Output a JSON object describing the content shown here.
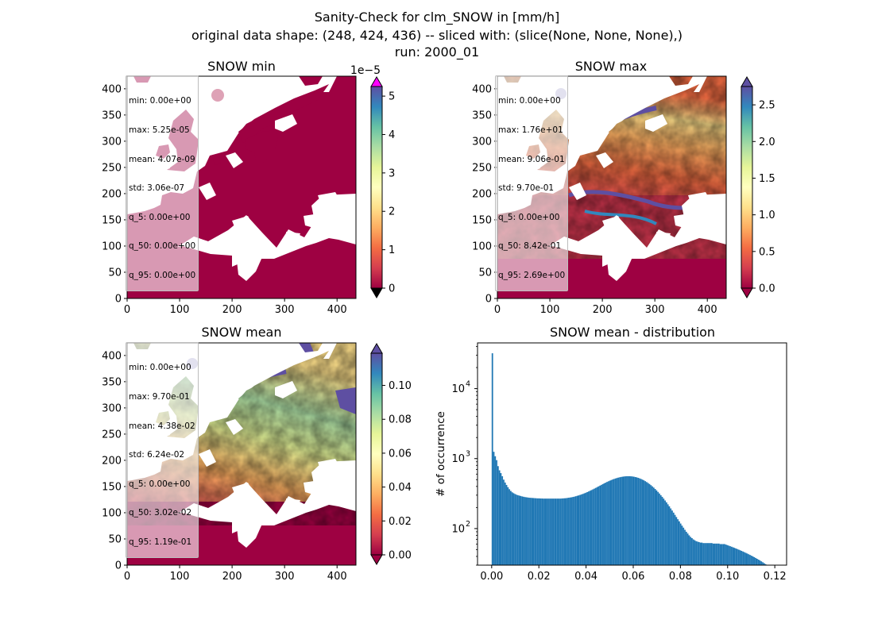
{
  "figure": {
    "title_lines": [
      "Sanity-Check for clm_SNOW in [mm/h]",
      "original data shape: (248, 424, 436) -- sliced with: (slice(None, None, None),)",
      "run: 2000_01"
    ]
  },
  "colors": {
    "spectral": [
      "#9e0142",
      "#d53e4f",
      "#f46d43",
      "#fdae61",
      "#fee08b",
      "#ffffbf",
      "#e6f598",
      "#abdda4",
      "#66c2a5",
      "#3288bd",
      "#5e4fa2"
    ],
    "under": "#000000",
    "over_min": "#ff00ff",
    "over_max": "#5e4fa2",
    "hist_bar": "#1f77b4"
  },
  "chart_data": [
    {
      "type": "heatmap",
      "title": "SNOW min",
      "xlim": [
        0,
        436
      ],
      "ylim": [
        0,
        424
      ],
      "xticks": [
        "0",
        "100",
        "200",
        "300",
        "400"
      ],
      "yticks": [
        "0",
        "50",
        "100",
        "150",
        "200",
        "250",
        "300",
        "350",
        "400"
      ],
      "colorbar": {
        "ticks": [
          "0",
          "1",
          "2",
          "3",
          "4",
          "5"
        ],
        "range": [
          0,
          5.25
        ],
        "offset_label": "1e−5",
        "extend": "both"
      },
      "stats": [
        "min: 0.00e+00",
        "max: 5.25e-05",
        "mean: 4.07e-09",
        "std: 3.06e-07",
        "q_5: 0.00e+00",
        "q_50: 0.00e+00",
        "q_95: 0.00e+00"
      ]
    },
    {
      "type": "heatmap",
      "title": "SNOW max",
      "xlim": [
        0,
        436
      ],
      "ylim": [
        0,
        424
      ],
      "xticks": [
        "0",
        "100",
        "200",
        "300",
        "400"
      ],
      "yticks": [
        "0",
        "50",
        "100",
        "150",
        "200",
        "250",
        "300",
        "350",
        "400"
      ],
      "colorbar": {
        "ticks": [
          "0.0",
          "0.5",
          "1.0",
          "1.5",
          "2.0",
          "2.5"
        ],
        "range": [
          0,
          2.75
        ],
        "extend": "both"
      },
      "stats": [
        "min: 0.00e+00",
        "max: 1.76e+01",
        "mean: 9.06e-01",
        "std: 9.70e-01",
        "q_5: 0.00e+00",
        "q_50: 8.42e-01",
        "q_95: 2.69e+00"
      ]
    },
    {
      "type": "heatmap",
      "title": "SNOW mean",
      "xlim": [
        0,
        436
      ],
      "ylim": [
        0,
        424
      ],
      "xticks": [
        "0",
        "100",
        "200",
        "300",
        "400"
      ],
      "yticks": [
        "0",
        "50",
        "100",
        "150",
        "200",
        "250",
        "300",
        "350",
        "400"
      ],
      "colorbar": {
        "ticks": [
          "0.00",
          "0.02",
          "0.04",
          "0.06",
          "0.08",
          "0.10"
        ],
        "range": [
          0,
          0.119
        ],
        "extend": "both"
      },
      "stats": [
        "min: 0.00e+00",
        "max: 9.70e-01",
        "mean: 4.38e-02",
        "std: 6.24e-02",
        "q_5: 0.00e+00",
        "q_50: 3.02e-02",
        "q_95: 1.19e-01"
      ]
    },
    {
      "type": "bar",
      "title": "SNOW mean - distribution",
      "ylabel": "# of occurrence",
      "xlabel": "",
      "yscale": "log",
      "xlim": [
        -0.006,
        0.125
      ],
      "ylim": [
        30,
        45000
      ],
      "xticks": [
        0,
        0.02,
        0.04,
        0.06,
        0.08,
        0.1,
        0.12
      ],
      "xtick_labels": [
        "0.00",
        "0.02",
        "0.04",
        "0.06",
        "0.08",
        "0.10",
        "0.12"
      ],
      "yticks": [
        100,
        1000,
        10000
      ],
      "ytick_labels": [
        "10",
        "10",
        "10"
      ],
      "ytick_exponents": [
        "2",
        "3",
        "4"
      ],
      "bin_start": 0.0,
      "bin_width": 0.0006,
      "counts": [
        32000,
        1250,
        1080,
        950,
        780,
        680,
        620,
        560,
        500,
        455,
        420,
        390,
        365,
        345,
        330,
        320,
        312,
        305,
        300,
        296,
        292,
        288,
        285,
        282,
        280,
        278,
        276,
        275,
        274,
        273,
        272,
        271,
        270,
        270,
        269,
        269,
        268,
        268,
        268,
        268,
        268,
        268,
        268,
        268,
        268,
        268,
        268,
        268,
        268,
        269,
        270,
        271,
        272,
        274,
        276,
        278,
        280,
        283,
        286,
        290,
        294,
        298,
        303,
        308,
        313,
        319,
        325,
        332,
        339,
        347,
        355,
        363,
        372,
        381,
        391,
        401,
        411,
        421,
        432,
        443,
        453,
        464,
        474,
        484,
        494,
        503,
        512,
        520,
        528,
        535,
        541,
        547,
        551,
        555,
        558,
        560,
        560,
        560,
        558,
        555,
        551,
        545,
        539,
        531,
        522,
        512,
        501,
        489,
        476,
        462,
        448,
        433,
        417,
        401,
        385,
        368,
        351,
        334,
        317,
        300,
        284,
        268,
        252,
        237,
        222,
        208,
        194,
        181,
        169,
        157,
        146,
        136,
        127,
        118,
        110,
        103,
        96,
        90,
        85,
        80,
        76,
        73,
        70,
        68,
        66,
        65,
        64,
        63,
        63,
        62,
        62,
        62,
        62,
        62,
        62,
        62,
        61,
        61,
        61,
        61,
        61,
        60,
        60,
        60,
        60,
        59,
        58,
        57,
        56,
        55,
        54,
        53,
        52,
        51,
        50,
        49,
        48,
        47,
        46,
        45,
        44,
        43,
        42,
        41,
        40,
        39,
        38,
        37,
        36,
        35,
        34,
        33,
        32,
        31,
        30,
        30,
        30,
        30,
        30,
        30,
        30,
        30,
        30,
        30,
        30,
        30
      ]
    }
  ]
}
